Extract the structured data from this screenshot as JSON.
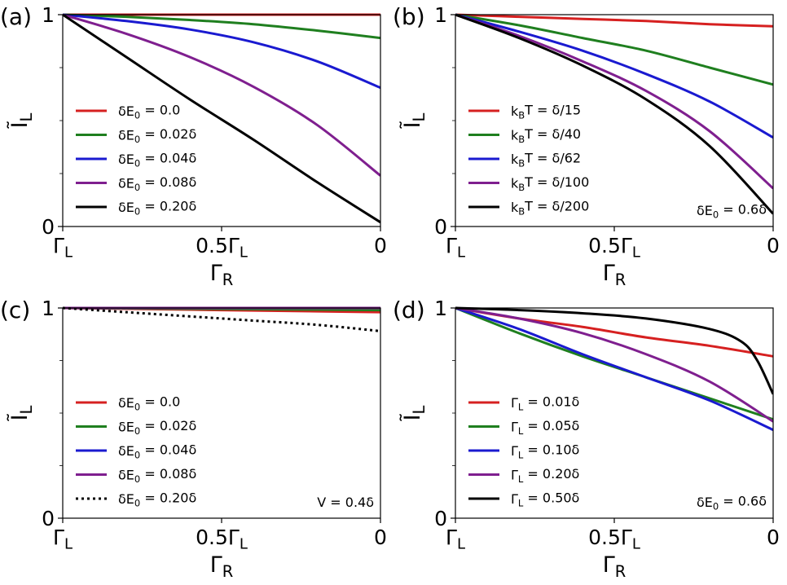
{
  "figure": {
    "xlabel": "Γ_R",
    "ylabel": "Ĩ_L"
  },
  "chart_data": [
    {
      "panel": "(a)",
      "type": "line",
      "xlabel": "Γ_R",
      "ylabel": "Ĩ_L",
      "xlim": [
        1,
        0
      ],
      "ylim": [
        0,
        1
      ],
      "xtick_labels": [
        "Γ_L",
        "0.5Γ_L",
        "0"
      ],
      "ytick_labels": [
        "0",
        "1"
      ],
      "annotation": "",
      "legend_loc": "lower-left",
      "series": [
        {
          "name": "δE_0 = 0.0",
          "color": "#d62020",
          "style": "solid",
          "x": [
            1.0,
            0.8,
            0.6,
            0.4,
            0.2,
            0.0
          ],
          "values": [
            1.0,
            1.0,
            1.0,
            1.0,
            1.0,
            1.0
          ]
        },
        {
          "name": "δE_0 = 0.02δ",
          "color": "#1f7f1f",
          "style": "solid",
          "x": [
            1.0,
            0.8,
            0.6,
            0.4,
            0.2,
            0.0
          ],
          "values": [
            1.0,
            0.99,
            0.975,
            0.955,
            0.925,
            0.89
          ]
        },
        {
          "name": "δE_0 = 0.04δ",
          "color": "#1a1ad0",
          "style": "solid",
          "x": [
            1.0,
            0.8,
            0.6,
            0.4,
            0.2,
            0.0
          ],
          "values": [
            1.0,
            0.97,
            0.93,
            0.87,
            0.78,
            0.655
          ]
        },
        {
          "name": "δE_0 = 0.08δ",
          "color": "#7f1f8f",
          "style": "solid",
          "x": [
            1.0,
            0.8,
            0.6,
            0.4,
            0.2,
            0.0
          ],
          "values": [
            1.0,
            0.91,
            0.8,
            0.66,
            0.48,
            0.24
          ]
        },
        {
          "name": "δE_0 = 0.20δ",
          "color": "#000000",
          "style": "solid",
          "x": [
            1.0,
            0.8,
            0.6,
            0.4,
            0.2,
            0.0
          ],
          "values": [
            1.0,
            0.8,
            0.6,
            0.41,
            0.21,
            0.02
          ]
        }
      ]
    },
    {
      "panel": "(b)",
      "type": "line",
      "xlabel": "Γ_R",
      "ylabel": "Ĩ_L",
      "xlim": [
        1,
        0
      ],
      "ylim": [
        0,
        1
      ],
      "xtick_labels": [
        "Γ_L",
        "0.5Γ_L",
        "0"
      ],
      "ytick_labels": [
        "0",
        "1"
      ],
      "annotation": "δE_0 = 0.6δ",
      "legend_loc": "lower-left",
      "series": [
        {
          "name": "k_BT = δ/15",
          "color": "#d62020",
          "style": "solid",
          "x": [
            1.0,
            0.8,
            0.6,
            0.4,
            0.2,
            0.0
          ],
          "values": [
            1.0,
            0.99,
            0.98,
            0.97,
            0.955,
            0.945
          ]
        },
        {
          "name": "k_BT = δ/40",
          "color": "#1f7f1f",
          "style": "solid",
          "x": [
            1.0,
            0.8,
            0.6,
            0.4,
            0.2,
            0.0
          ],
          "values": [
            1.0,
            0.95,
            0.89,
            0.83,
            0.75,
            0.67
          ]
        },
        {
          "name": "k_BT = δ/62",
          "color": "#1a1ad0",
          "style": "solid",
          "x": [
            1.0,
            0.8,
            0.6,
            0.4,
            0.2,
            0.0
          ],
          "values": [
            1.0,
            0.92,
            0.83,
            0.72,
            0.59,
            0.42
          ]
        },
        {
          "name": "k_BT = δ/100",
          "color": "#7f1f8f",
          "style": "solid",
          "x": [
            1.0,
            0.8,
            0.6,
            0.4,
            0.2,
            0.0
          ],
          "values": [
            1.0,
            0.9,
            0.78,
            0.64,
            0.45,
            0.18
          ]
        },
        {
          "name": "k_BT = δ/200",
          "color": "#000000",
          "style": "solid",
          "x": [
            1.0,
            0.8,
            0.6,
            0.4,
            0.2,
            0.0
          ],
          "values": [
            1.0,
            0.89,
            0.76,
            0.6,
            0.38,
            0.06
          ]
        }
      ]
    },
    {
      "panel": "(c)",
      "type": "line",
      "xlabel": "Γ_R",
      "ylabel": "Ĩ_L",
      "xlim": [
        1,
        0
      ],
      "ylim": [
        0,
        1
      ],
      "xtick_labels": [
        "Γ_L",
        "0.5Γ_L",
        "0"
      ],
      "ytick_labels": [
        "0",
        "1"
      ],
      "annotation": "V = 0.4δ",
      "legend_loc": "lower-left",
      "series": [
        {
          "name": "δE_0 = 0.0",
          "color": "#d62020",
          "style": "solid",
          "x": [
            1.0,
            0.8,
            0.6,
            0.4,
            0.2,
            0.0
          ],
          "values": [
            1.0,
            0.996,
            0.992,
            0.988,
            0.984,
            0.98
          ]
        },
        {
          "name": "δE_0 = 0.02δ",
          "color": "#1f7f1f",
          "style": "solid",
          "x": [
            1.0,
            0.8,
            0.6,
            0.4,
            0.2,
            0.0
          ],
          "values": [
            1.0,
            0.998,
            0.996,
            0.994,
            0.992,
            0.99
          ]
        },
        {
          "name": "δE_0 = 0.04δ",
          "color": "#1a1ad0",
          "style": "solid",
          "x": [
            1.0,
            0.8,
            0.6,
            0.4,
            0.2,
            0.0
          ],
          "values": [
            1.0,
            1.0,
            1.0,
            1.0,
            1.0,
            1.0
          ]
        },
        {
          "name": "δE_0 = 0.08δ",
          "color": "#7f1f8f",
          "style": "solid",
          "x": [
            1.0,
            0.8,
            0.6,
            0.4,
            0.2,
            0.0
          ],
          "values": [
            1.0,
            1.0,
            1.0,
            1.0,
            1.0,
            1.0
          ]
        },
        {
          "name": "δE_0 = 0.20δ",
          "color": "#000000",
          "style": "dotted",
          "x": [
            1.0,
            0.8,
            0.6,
            0.4,
            0.2,
            0.0
          ],
          "values": [
            1.0,
            0.98,
            0.96,
            0.94,
            0.92,
            0.89
          ]
        }
      ]
    },
    {
      "panel": "(d)",
      "type": "line",
      "xlabel": "Γ_R",
      "ylabel": "Ĩ_L",
      "xlim": [
        1,
        0
      ],
      "ylim": [
        0,
        1
      ],
      "xtick_labels": [
        "Γ_L",
        "0.5Γ_L",
        "0"
      ],
      "ytick_labels": [
        "0",
        "1"
      ],
      "annotation": "δE_0 = 0.6δ",
      "legend_loc": "lower-left",
      "series": [
        {
          "name": "Γ_L = 0.01δ",
          "color": "#d62020",
          "style": "solid",
          "x": [
            1.0,
            0.8,
            0.6,
            0.4,
            0.2,
            0.0
          ],
          "values": [
            1.0,
            0.95,
            0.91,
            0.86,
            0.82,
            0.77
          ]
        },
        {
          "name": "Γ_L = 0.05δ",
          "color": "#1f7f1f",
          "style": "solid",
          "x": [
            1.0,
            0.8,
            0.6,
            0.4,
            0.2,
            0.0
          ],
          "values": [
            1.0,
            0.88,
            0.77,
            0.67,
            0.57,
            0.47
          ]
        },
        {
          "name": "Γ_L = 0.10δ",
          "color": "#1a1ad0",
          "style": "solid",
          "x": [
            1.0,
            0.8,
            0.6,
            0.4,
            0.2,
            0.0
          ],
          "values": [
            1.0,
            0.9,
            0.78,
            0.67,
            0.56,
            0.42
          ]
        },
        {
          "name": "Γ_L = 0.20δ",
          "color": "#7f1f8f",
          "style": "solid",
          "x": [
            1.0,
            0.8,
            0.6,
            0.4,
            0.2,
            0.0
          ],
          "values": [
            1.0,
            0.95,
            0.88,
            0.78,
            0.65,
            0.46
          ]
        },
        {
          "name": "Γ_L = 0.50δ",
          "color": "#000000",
          "style": "solid",
          "x": [
            1.0,
            0.8,
            0.6,
            0.4,
            0.2,
            0.1,
            0.05,
            0.0
          ],
          "values": [
            1.0,
            0.99,
            0.975,
            0.95,
            0.9,
            0.84,
            0.75,
            0.59
          ]
        }
      ]
    }
  ]
}
